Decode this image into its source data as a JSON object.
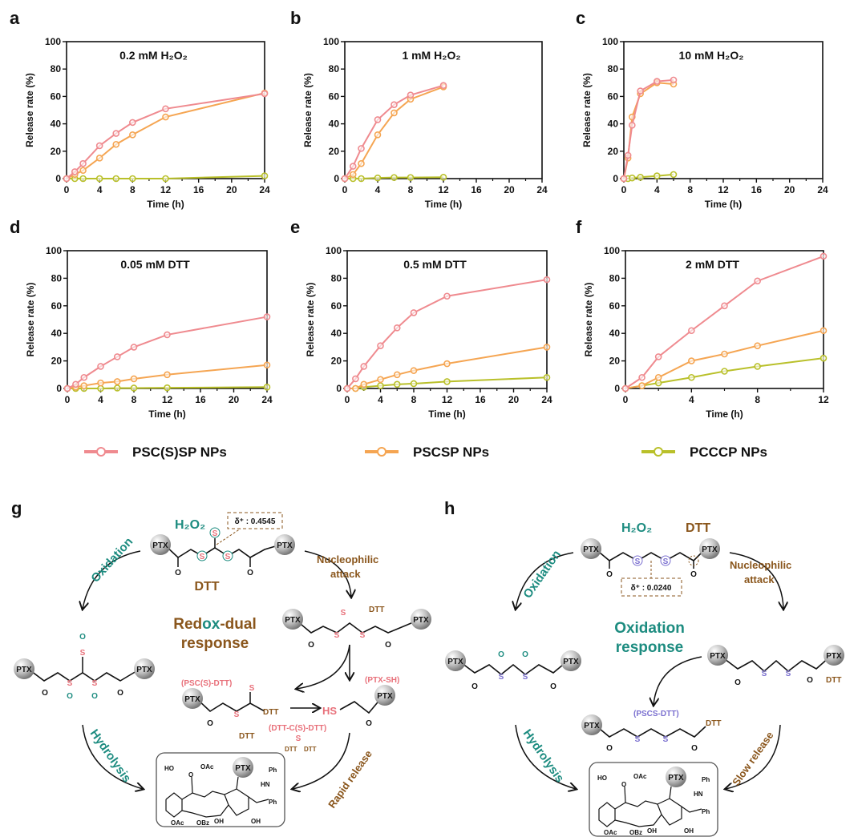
{
  "colors": {
    "psc_s_sp": "#ef8a8f",
    "pscsp": "#f5a552",
    "pcccp": "#b9c02a",
    "teal": "#1d8c80",
    "brown": "#8a561c",
    "sulfur_pink": "#e8707a",
    "sulfur_purple": "#7b70d0"
  },
  "legend": [
    {
      "label": "PSC(S)SP NPs",
      "color": "#ef8a8f"
    },
    {
      "label": "PSCSP NPs",
      "color": "#f5a552"
    },
    {
      "label": "PCCCP NPs",
      "color": "#b9c02a"
    }
  ],
  "chart_data": [
    {
      "panel": "a",
      "type": "line",
      "title": "0.2 mM H₂O₂",
      "xlabel": "Time (h)",
      "ylabel": "Release rate (%)",
      "xlim": [
        0,
        24
      ],
      "ylim": [
        0,
        100
      ],
      "xticks": [
        0,
        4,
        8,
        12,
        16,
        20,
        24
      ],
      "yticks": [
        0,
        20,
        40,
        60,
        80,
        100
      ],
      "grid": false,
      "x": [
        0,
        1,
        2,
        4,
        6,
        8,
        12,
        24
      ],
      "series": [
        {
          "name": "PSC(S)SP NPs",
          "values": [
            0,
            5,
            11,
            24,
            33,
            41,
            51,
            62
          ]
        },
        {
          "name": "PSCSP NPs",
          "values": [
            0,
            3,
            6,
            15,
            25,
            32,
            45,
            62.5
          ]
        },
        {
          "name": "PCCCP NPs",
          "values": [
            0,
            0,
            0,
            0,
            0,
            0,
            0,
            2
          ]
        }
      ]
    },
    {
      "panel": "b",
      "type": "line",
      "title": "1 mM H₂O₂",
      "xlabel": "Time (h)",
      "ylabel": "Release rate (%)",
      "xlim": [
        0,
        24
      ],
      "ylim": [
        0,
        100
      ],
      "xticks": [
        0,
        4,
        8,
        12,
        16,
        20,
        24
      ],
      "yticks": [
        0,
        20,
        40,
        60,
        80,
        100
      ],
      "grid": false,
      "x": [
        0,
        1,
        2,
        4,
        6,
        8,
        12
      ],
      "series": [
        {
          "name": "PSC(S)SP NPs",
          "values": [
            0,
            9,
            22,
            43,
            54,
            61,
            68
          ]
        },
        {
          "name": "PSCSP NPs",
          "values": [
            0,
            3,
            11,
            32,
            48,
            58,
            67
          ]
        },
        {
          "name": "PCCCP NPs",
          "values": [
            0,
            0,
            0,
            0.5,
            0.8,
            0.8,
            1
          ]
        }
      ]
    },
    {
      "panel": "c",
      "type": "line",
      "title": "10 mM H₂O₂",
      "xlabel": "Time (h)",
      "ylabel": "Release rate (%)",
      "xlim": [
        0,
        24
      ],
      "ylim": [
        0,
        100
      ],
      "xticks": [
        0,
        4,
        8,
        12,
        16,
        20,
        24
      ],
      "yticks": [
        0,
        20,
        40,
        60,
        80,
        100
      ],
      "grid": false,
      "x": [
        0,
        0.5,
        1,
        2,
        4,
        6
      ],
      "series": [
        {
          "name": "PSC(S)SP NPs",
          "values": [
            0,
            17,
            39,
            64,
            71,
            72
          ]
        },
        {
          "name": "PSCSP NPs",
          "values": [
            0,
            15,
            45,
            62,
            70,
            69
          ]
        },
        {
          "name": "PCCCP NPs",
          "values": [
            0,
            0,
            0.5,
            1,
            2,
            3
          ]
        }
      ]
    },
    {
      "panel": "d",
      "type": "line",
      "title": "0.05 mM DTT",
      "xlabel": "Time (h)",
      "ylabel": "Release rate (%)",
      "xlim": [
        0,
        24
      ],
      "ylim": [
        0,
        100
      ],
      "xticks": [
        0,
        4,
        8,
        12,
        16,
        20,
        24
      ],
      "yticks": [
        0,
        20,
        40,
        60,
        80,
        100
      ],
      "grid": false,
      "x": [
        0,
        1,
        2,
        4,
        6,
        8,
        12,
        24
      ],
      "series": [
        {
          "name": "PSC(S)SP NPs",
          "values": [
            0,
            3,
            8,
            16,
            23,
            30,
            39,
            52
          ]
        },
        {
          "name": "PSCSP NPs",
          "values": [
            0,
            1,
            2,
            4,
            5,
            7,
            10,
            17
          ]
        },
        {
          "name": "PCCCP NPs",
          "values": [
            0,
            0,
            0,
            0,
            0.3,
            0.3,
            0.5,
            1
          ]
        }
      ]
    },
    {
      "panel": "e",
      "type": "line",
      "title": "0.5 mM DTT",
      "xlabel": "Time (h)",
      "ylabel": "Release rate (%)",
      "xlim": [
        0,
        24
      ],
      "ylim": [
        0,
        100
      ],
      "xticks": [
        0,
        4,
        8,
        12,
        16,
        20,
        24
      ],
      "yticks": [
        0,
        20,
        40,
        60,
        80,
        100
      ],
      "grid": false,
      "x": [
        0,
        1,
        2,
        4,
        6,
        8,
        12,
        24
      ],
      "series": [
        {
          "name": "PSC(S)SP NPs",
          "values": [
            0,
            7,
            16,
            31,
            44,
            55,
            67,
            79
          ]
        },
        {
          "name": "PSCSP NPs",
          "values": [
            0,
            0,
            3,
            6.5,
            10,
            13,
            18,
            30
          ]
        },
        {
          "name": "PCCCP NPs",
          "values": [
            0,
            0,
            1,
            2,
            3,
            3.5,
            5,
            8
          ]
        }
      ]
    },
    {
      "panel": "f",
      "type": "line",
      "title": "2 mM DTT",
      "xlabel": "Time (h)",
      "ylabel": "Release rate (%)",
      "xlim": [
        0,
        12
      ],
      "ylim": [
        0,
        100
      ],
      "xticks": [
        0,
        4,
        8,
        12
      ],
      "yticks": [
        0,
        20,
        40,
        60,
        80,
        100
      ],
      "grid": false,
      "x": [
        0,
        1,
        2,
        4,
        6,
        8,
        12
      ],
      "series": [
        {
          "name": "PSC(S)SP NPs",
          "values": [
            0,
            8,
            23,
            42,
            60,
            78,
            96
          ]
        },
        {
          "name": "PSCSP NPs",
          "values": [
            0,
            2,
            8,
            20,
            25,
            31,
            42
          ]
        },
        {
          "name": "PCCCP NPs",
          "values": [
            0,
            2,
            4,
            8,
            12.5,
            16,
            22
          ]
        }
      ]
    }
  ],
  "scheme_g": {
    "letter": "g",
    "h2o2": "H₂O₂",
    "dtt_top": "DTT",
    "delta": "δ⁺ : 0.4545",
    "oxidation": "Oxidation",
    "nucleophilic": "Nucleophilic",
    "attack": "attack",
    "center_1a": "Red",
    "center_1b": "ox",
    "center_1c": "-dual",
    "center_2": "response",
    "intermediate_dtt": "DTT",
    "psc_s_dtt": "(PSC(S)-DTT)",
    "dtt_mid": "DTT",
    "dtt_attack": "DTT",
    "ptx_sh": "(PTX-SH)",
    "hs": "HS",
    "dtt_c_s_dtt": "(DTT-C(S)-DTT)",
    "dtt_left": "DTT",
    "dtt_right": "DTT",
    "hydrolysis": "Hydrolysis",
    "rapid_release": "Rapid release",
    "S": "S",
    "O": "O"
  },
  "scheme_h": {
    "letter": "h",
    "h2o2": "H₂O₂",
    "dtt_top": "DTT",
    "delta": "δ⁺ : 0.0240",
    "oxidation": "Oxidation",
    "nucleophilic": "Nucleophilic",
    "attack": "attack",
    "center_1": "Oxidation",
    "center_2": "response",
    "intermediate_dtt": "DTT",
    "pscs_dtt": "(PSCS-DTT)",
    "dtt_end": "DTT",
    "hydrolysis": "Hydrolysis",
    "slow_release": "Slow release",
    "S": "S",
    "O": "O"
  },
  "ptx_label": "PTX",
  "paclitaxel_labels": {
    "ho": "HO",
    "oac_top": "OAc",
    "oac_bottom": "OAc",
    "obz": "OBz",
    "oh": "OH",
    "oh2": "OH",
    "ph_top": "Ph",
    "ph": "Ph",
    "hn": "HN",
    "o": "O"
  }
}
